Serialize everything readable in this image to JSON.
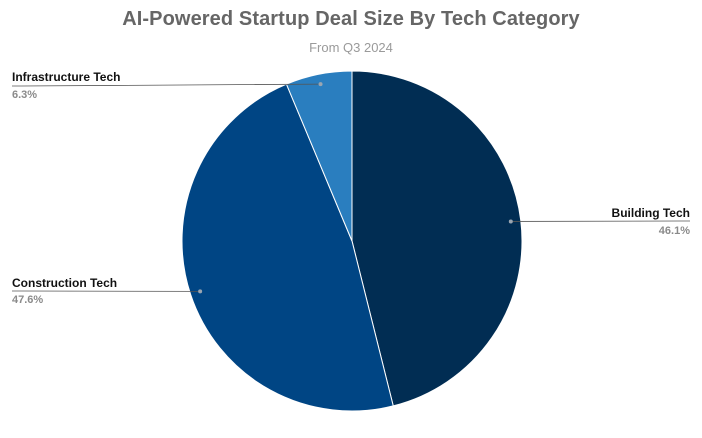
{
  "chart_data": {
    "type": "pie",
    "title": "AI-Powered Startup Deal Size By Tech Category",
    "subtitle": "From Q3 2024",
    "slices": [
      {
        "label": "Building Tech",
        "value": 46.1,
        "value_label": "46.1%",
        "color": "#012d53"
      },
      {
        "label": "Construction Tech",
        "value": 47.6,
        "value_label": "47.6%",
        "color": "#004584"
      },
      {
        "label": "Infrastructure Tech",
        "value": 6.3,
        "value_label": "6.3%",
        "color": "#2a7ebf"
      }
    ],
    "start": "12 o'clock",
    "direction": "clockwise",
    "legend": "none",
    "label_style": "callout lines with name and percentage"
  }
}
